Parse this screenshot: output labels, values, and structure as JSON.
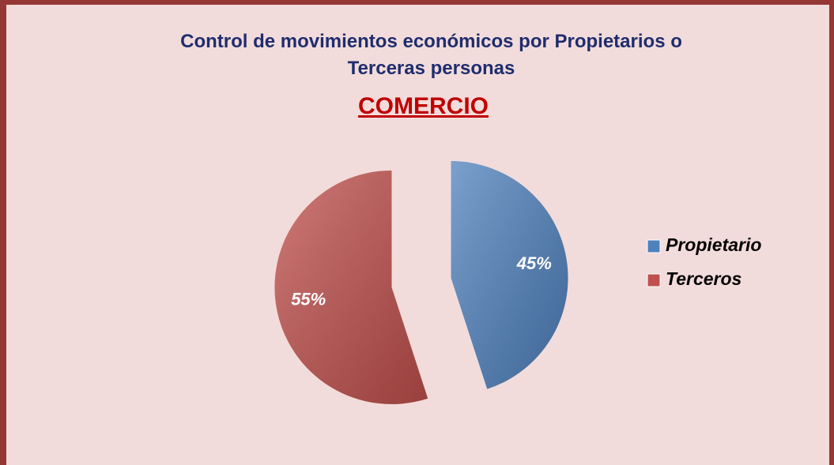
{
  "chart_data": {
    "type": "pie",
    "title": "Control de movimientos económicos por Propietarios o Terceras personas",
    "subtitle": "COMERCIO",
    "categories": [
      "Propietario",
      "Terceros"
    ],
    "values": [
      45,
      55
    ],
    "value_labels": [
      "45%",
      "55%"
    ],
    "colors": [
      "#4f81bd",
      "#c0504d"
    ]
  }
}
